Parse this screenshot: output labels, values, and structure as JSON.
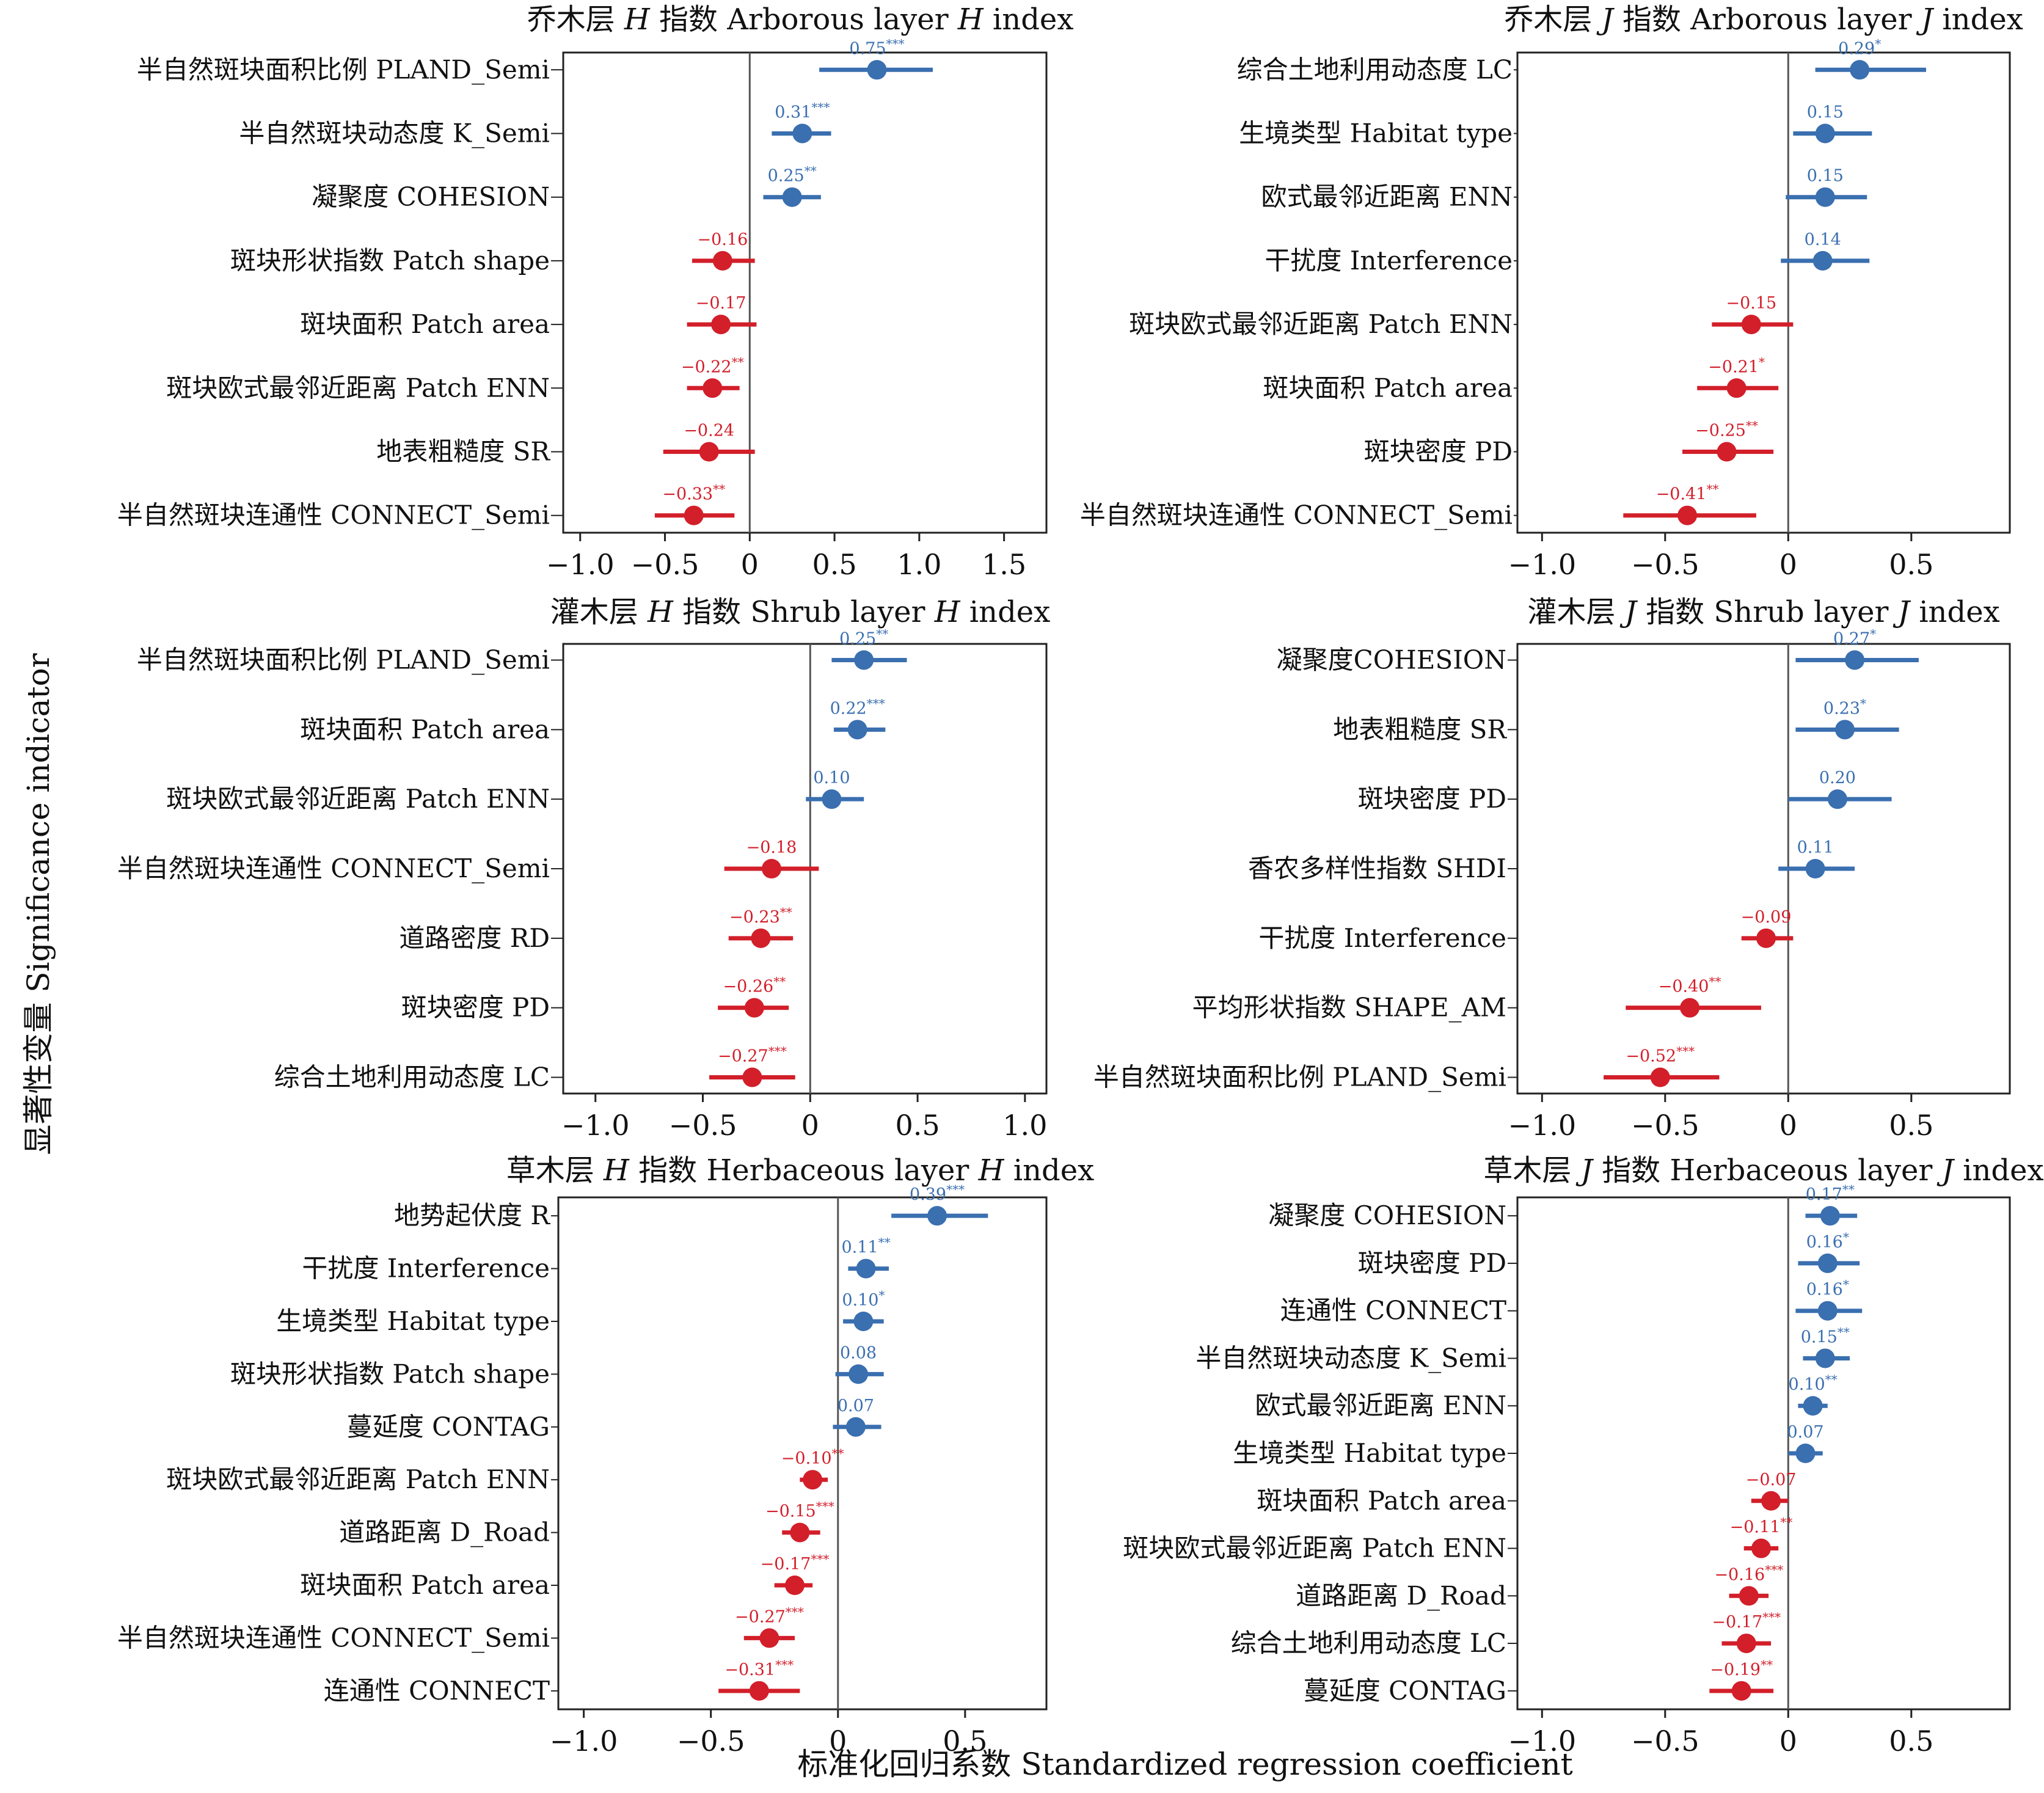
{
  "figure": {
    "ylabel": "显著性变量 Significance indicator",
    "xlabel": "标准化回归系数 Standardized regression coefficient"
  },
  "colors": {
    "positive": "#3a6fb0",
    "negative": "#d21f2a",
    "zero_line": "#555555",
    "frame": "#222222"
  },
  "chart_data": [
    {
      "type": "scatter",
      "title_parts": [
        "乔木层 ",
        "H",
        " 指数 Arborous layer ",
        "H",
        " index"
      ],
      "xlim": [
        -1.1,
        1.75
      ],
      "xticks": [
        -1.0,
        -0.5,
        0,
        0.5,
        1.0,
        1.5
      ],
      "xtick_labels": [
        "−1.0",
        "−0.5",
        "0",
        "0.5",
        "1.0",
        "1.5"
      ],
      "rows": [
        {
          "label": "半自然斑块面积比例 PLAND_Semi",
          "value": 0.75,
          "lo": 0.41,
          "hi": 1.08,
          "text": "0.75",
          "sig": "***"
        },
        {
          "label": "半自然斑块动态度 K_Semi",
          "value": 0.31,
          "lo": 0.13,
          "hi": 0.48,
          "text": "0.31",
          "sig": "***"
        },
        {
          "label": "凝聚度 COHESION",
          "value": 0.25,
          "lo": 0.08,
          "hi": 0.42,
          "text": "0.25",
          "sig": "**"
        },
        {
          "label": "斑块形状指数 Patch shape",
          "value": -0.16,
          "lo": -0.34,
          "hi": 0.03,
          "text": "−0.16",
          "sig": ""
        },
        {
          "label": "斑块面积 Patch area",
          "value": -0.17,
          "lo": -0.37,
          "hi": 0.04,
          "text": "−0.17",
          "sig": ""
        },
        {
          "label": "斑块欧式最邻近距离 Patch ENN",
          "value": -0.22,
          "lo": -0.37,
          "hi": -0.06,
          "text": "−0.22",
          "sig": "**"
        },
        {
          "label": "地表粗糙度 SR",
          "value": -0.24,
          "lo": -0.51,
          "hi": 0.03,
          "text": "−0.24",
          "sig": ""
        },
        {
          "label": "半自然斑块连通性 CONNECT_Semi",
          "value": -0.33,
          "lo": -0.56,
          "hi": -0.09,
          "text": "−0.33",
          "sig": "**"
        }
      ]
    },
    {
      "type": "scatter",
      "title_parts": [
        "乔木层 ",
        "J",
        " 指数 Arborous layer ",
        "J",
        " index"
      ],
      "xlim": [
        -1.1,
        0.9
      ],
      "xticks": [
        -1.0,
        -0.5,
        0,
        0.5
      ],
      "xtick_labels": [
        "−1.0",
        "−0.5",
        "0",
        "0.5"
      ],
      "rows": [
        {
          "label": "综合土地利用动态度 LC",
          "value": 0.29,
          "lo": 0.11,
          "hi": 0.56,
          "text": "0.29",
          "sig": "*"
        },
        {
          "label": "生境类型 Habitat type",
          "value": 0.15,
          "lo": 0.02,
          "hi": 0.34,
          "text": "0.15",
          "sig": ""
        },
        {
          "label": "欧式最邻近距离 ENN",
          "value": 0.15,
          "lo": -0.01,
          "hi": 0.32,
          "text": "0.15",
          "sig": ""
        },
        {
          "label": "干扰度 Interference",
          "value": 0.14,
          "lo": -0.03,
          "hi": 0.33,
          "text": "0.14",
          "sig": ""
        },
        {
          "label": "斑块欧式最邻近距离 Patch ENN",
          "value": -0.15,
          "lo": -0.31,
          "hi": 0.02,
          "text": "−0.15",
          "sig": ""
        },
        {
          "label": "斑块面积 Patch area",
          "value": -0.21,
          "lo": -0.37,
          "hi": -0.04,
          "text": "−0.21",
          "sig": "*"
        },
        {
          "label": "斑块密度 PD",
          "value": -0.25,
          "lo": -0.43,
          "hi": -0.06,
          "text": "−0.25",
          "sig": "**"
        },
        {
          "label": "半自然斑块连通性 CONNECT_Semi",
          "value": -0.41,
          "lo": -0.67,
          "hi": -0.13,
          "text": "−0.41",
          "sig": "**"
        }
      ]
    },
    {
      "type": "scatter",
      "title_parts": [
        "灌木层 ",
        "H",
        " 指数 Shrub layer ",
        "H",
        " index"
      ],
      "xlim": [
        -1.15,
        1.1
      ],
      "xticks": [
        -1.0,
        -0.5,
        0,
        0.5,
        1.0
      ],
      "xtick_labels": [
        "−1.0",
        "−0.5",
        "0",
        "0.5",
        "1.0"
      ],
      "rows": [
        {
          "label": "半自然斑块面积比例 PLAND_Semi",
          "value": 0.25,
          "lo": 0.1,
          "hi": 0.45,
          "text": "0.25",
          "sig": "**"
        },
        {
          "label": "斑块面积 Patch area",
          "value": 0.22,
          "lo": 0.11,
          "hi": 0.35,
          "text": "0.22",
          "sig": "***"
        },
        {
          "label": "斑块欧式最邻近距离 Patch ENN",
          "value": 0.1,
          "lo": -0.02,
          "hi": 0.25,
          "text": "0.10",
          "sig": ""
        },
        {
          "label": "半自然斑块连通性 CONNECT_Semi",
          "value": -0.18,
          "lo": -0.4,
          "hi": 0.04,
          "text": "−0.18",
          "sig": ""
        },
        {
          "label": "道路密度 RD",
          "value": -0.23,
          "lo": -0.38,
          "hi": -0.08,
          "text": "−0.23",
          "sig": "**"
        },
        {
          "label": "斑块密度 PD",
          "value": -0.26,
          "lo": -0.43,
          "hi": -0.1,
          "text": "−0.26",
          "sig": "**"
        },
        {
          "label": "综合土地利用动态度 LC",
          "value": -0.27,
          "lo": -0.47,
          "hi": -0.07,
          "text": "−0.27",
          "sig": "***"
        }
      ]
    },
    {
      "type": "scatter",
      "title_parts": [
        "灌木层 ",
        "J",
        " 指数 Shrub layer ",
        "J",
        " index"
      ],
      "xlim": [
        -1.1,
        0.9
      ],
      "xticks": [
        -1.0,
        -0.5,
        0,
        0.5
      ],
      "xtick_labels": [
        "−1.0",
        "−0.5",
        "0",
        "0.5"
      ],
      "rows": [
        {
          "label": "凝聚度COHESION",
          "value": 0.27,
          "lo": 0.03,
          "hi": 0.53,
          "text": "0.27",
          "sig": "*"
        },
        {
          "label": "地表粗糙度 SR",
          "value": 0.23,
          "lo": 0.03,
          "hi": 0.45,
          "text": "0.23",
          "sig": "*"
        },
        {
          "label": "斑块密度 PD",
          "value": 0.2,
          "lo": 0.0,
          "hi": 0.42,
          "text": "0.20",
          "sig": ""
        },
        {
          "label": "香农多样性指数 SHDI",
          "value": 0.11,
          "lo": -0.04,
          "hi": 0.27,
          "text": "0.11",
          "sig": ""
        },
        {
          "label": "干扰度 Interference",
          "value": -0.09,
          "lo": -0.19,
          "hi": 0.02,
          "text": "−0.09",
          "sig": ""
        },
        {
          "label": "平均形状指数 SHAPE_AM",
          "value": -0.4,
          "lo": -0.66,
          "hi": -0.11,
          "text": "−0.40",
          "sig": "**"
        },
        {
          "label": "半自然斑块面积比例 PLAND_Semi",
          "value": -0.52,
          "lo": -0.75,
          "hi": -0.28,
          "text": "−0.52",
          "sig": "***"
        }
      ]
    },
    {
      "type": "scatter",
      "title_parts": [
        "草木层 ",
        "H",
        " 指数 Herbaceous layer ",
        "H",
        " index"
      ],
      "xlim": [
        -1.1,
        0.82
      ],
      "xticks": [
        -1.0,
        -0.5,
        0,
        0.5
      ],
      "xtick_labels": [
        "−1.0",
        "−0.5",
        "0",
        "0.5"
      ],
      "rows": [
        {
          "label": "地势起伏度 R",
          "value": 0.39,
          "lo": 0.21,
          "hi": 0.59,
          "text": "0.39",
          "sig": "***"
        },
        {
          "label": "干扰度 Interference",
          "value": 0.11,
          "lo": 0.04,
          "hi": 0.2,
          "text": "0.11",
          "sig": "**"
        },
        {
          "label": "生境类型 Habitat type",
          "value": 0.1,
          "lo": 0.02,
          "hi": 0.18,
          "text": "0.10",
          "sig": "*"
        },
        {
          "label": "斑块形状指数 Patch shape",
          "value": 0.08,
          "lo": -0.01,
          "hi": 0.18,
          "text": "0.08",
          "sig": ""
        },
        {
          "label": "蔓延度 CONTAG",
          "value": 0.07,
          "lo": -0.02,
          "hi": 0.17,
          "text": "0.07",
          "sig": ""
        },
        {
          "label": "斑块欧式最邻近距离 Patch ENN",
          "value": -0.1,
          "lo": -0.15,
          "hi": -0.04,
          "text": "−0.10",
          "sig": "**"
        },
        {
          "label": "道路距离 D_Road",
          "value": -0.15,
          "lo": -0.22,
          "hi": -0.07,
          "text": "−0.15",
          "sig": "***"
        },
        {
          "label": "斑块面积 Patch area",
          "value": -0.17,
          "lo": -0.25,
          "hi": -0.1,
          "text": "−0.17",
          "sig": "***"
        },
        {
          "label": "半自然斑块连通性 CONNECT_Semi",
          "value": -0.27,
          "lo": -0.37,
          "hi": -0.17,
          "text": "−0.27",
          "sig": "***"
        },
        {
          "label": "连通性 CONNECT",
          "value": -0.31,
          "lo": -0.47,
          "hi": -0.15,
          "text": "−0.31",
          "sig": "***"
        }
      ]
    },
    {
      "type": "scatter",
      "title_parts": [
        "草木层 ",
        "J",
        " 指数 Herbaceous layer ",
        "J",
        " index"
      ],
      "xlim": [
        -1.1,
        0.9
      ],
      "xticks": [
        -1.0,
        -0.5,
        0,
        0.5
      ],
      "xtick_labels": [
        "−1.0",
        "−0.5",
        "0",
        "0.5"
      ],
      "rows": [
        {
          "label": "凝聚度 COHESION",
          "value": 0.17,
          "lo": 0.07,
          "hi": 0.28,
          "text": "0.17",
          "sig": "**"
        },
        {
          "label": "斑块密度 PD",
          "value": 0.16,
          "lo": 0.04,
          "hi": 0.29,
          "text": "0.16",
          "sig": "*"
        },
        {
          "label": "连通性 CONNECT",
          "value": 0.16,
          "lo": 0.03,
          "hi": 0.3,
          "text": "0.16",
          "sig": "*"
        },
        {
          "label": "半自然斑块动态度 K_Semi",
          "value": 0.15,
          "lo": 0.06,
          "hi": 0.25,
          "text": "0.15",
          "sig": "**"
        },
        {
          "label": "欧式最邻近距离 ENN",
          "value": 0.1,
          "lo": 0.04,
          "hi": 0.16,
          "text": "0.10",
          "sig": "**"
        },
        {
          "label": "生境类型 Habitat type",
          "value": 0.07,
          "lo": 0.0,
          "hi": 0.14,
          "text": "0.07",
          "sig": ""
        },
        {
          "label": "斑块面积 Patch area",
          "value": -0.07,
          "lo": -0.15,
          "hi": 0.0,
          "text": "−0.07",
          "sig": ""
        },
        {
          "label": "斑块欧式最邻近距离 Patch ENN",
          "value": -0.11,
          "lo": -0.18,
          "hi": -0.04,
          "text": "−0.11",
          "sig": "**"
        },
        {
          "label": "道路距离 D_Road",
          "value": -0.16,
          "lo": -0.24,
          "hi": -0.08,
          "text": "−0.16",
          "sig": "***"
        },
        {
          "label": "综合土地利用动态度 LC",
          "value": -0.17,
          "lo": -0.27,
          "hi": -0.07,
          "text": "−0.17",
          "sig": "***"
        },
        {
          "label": "蔓延度 CONTAG",
          "value": -0.19,
          "lo": -0.32,
          "hi": -0.06,
          "text": "−0.19",
          "sig": "**"
        }
      ]
    }
  ]
}
